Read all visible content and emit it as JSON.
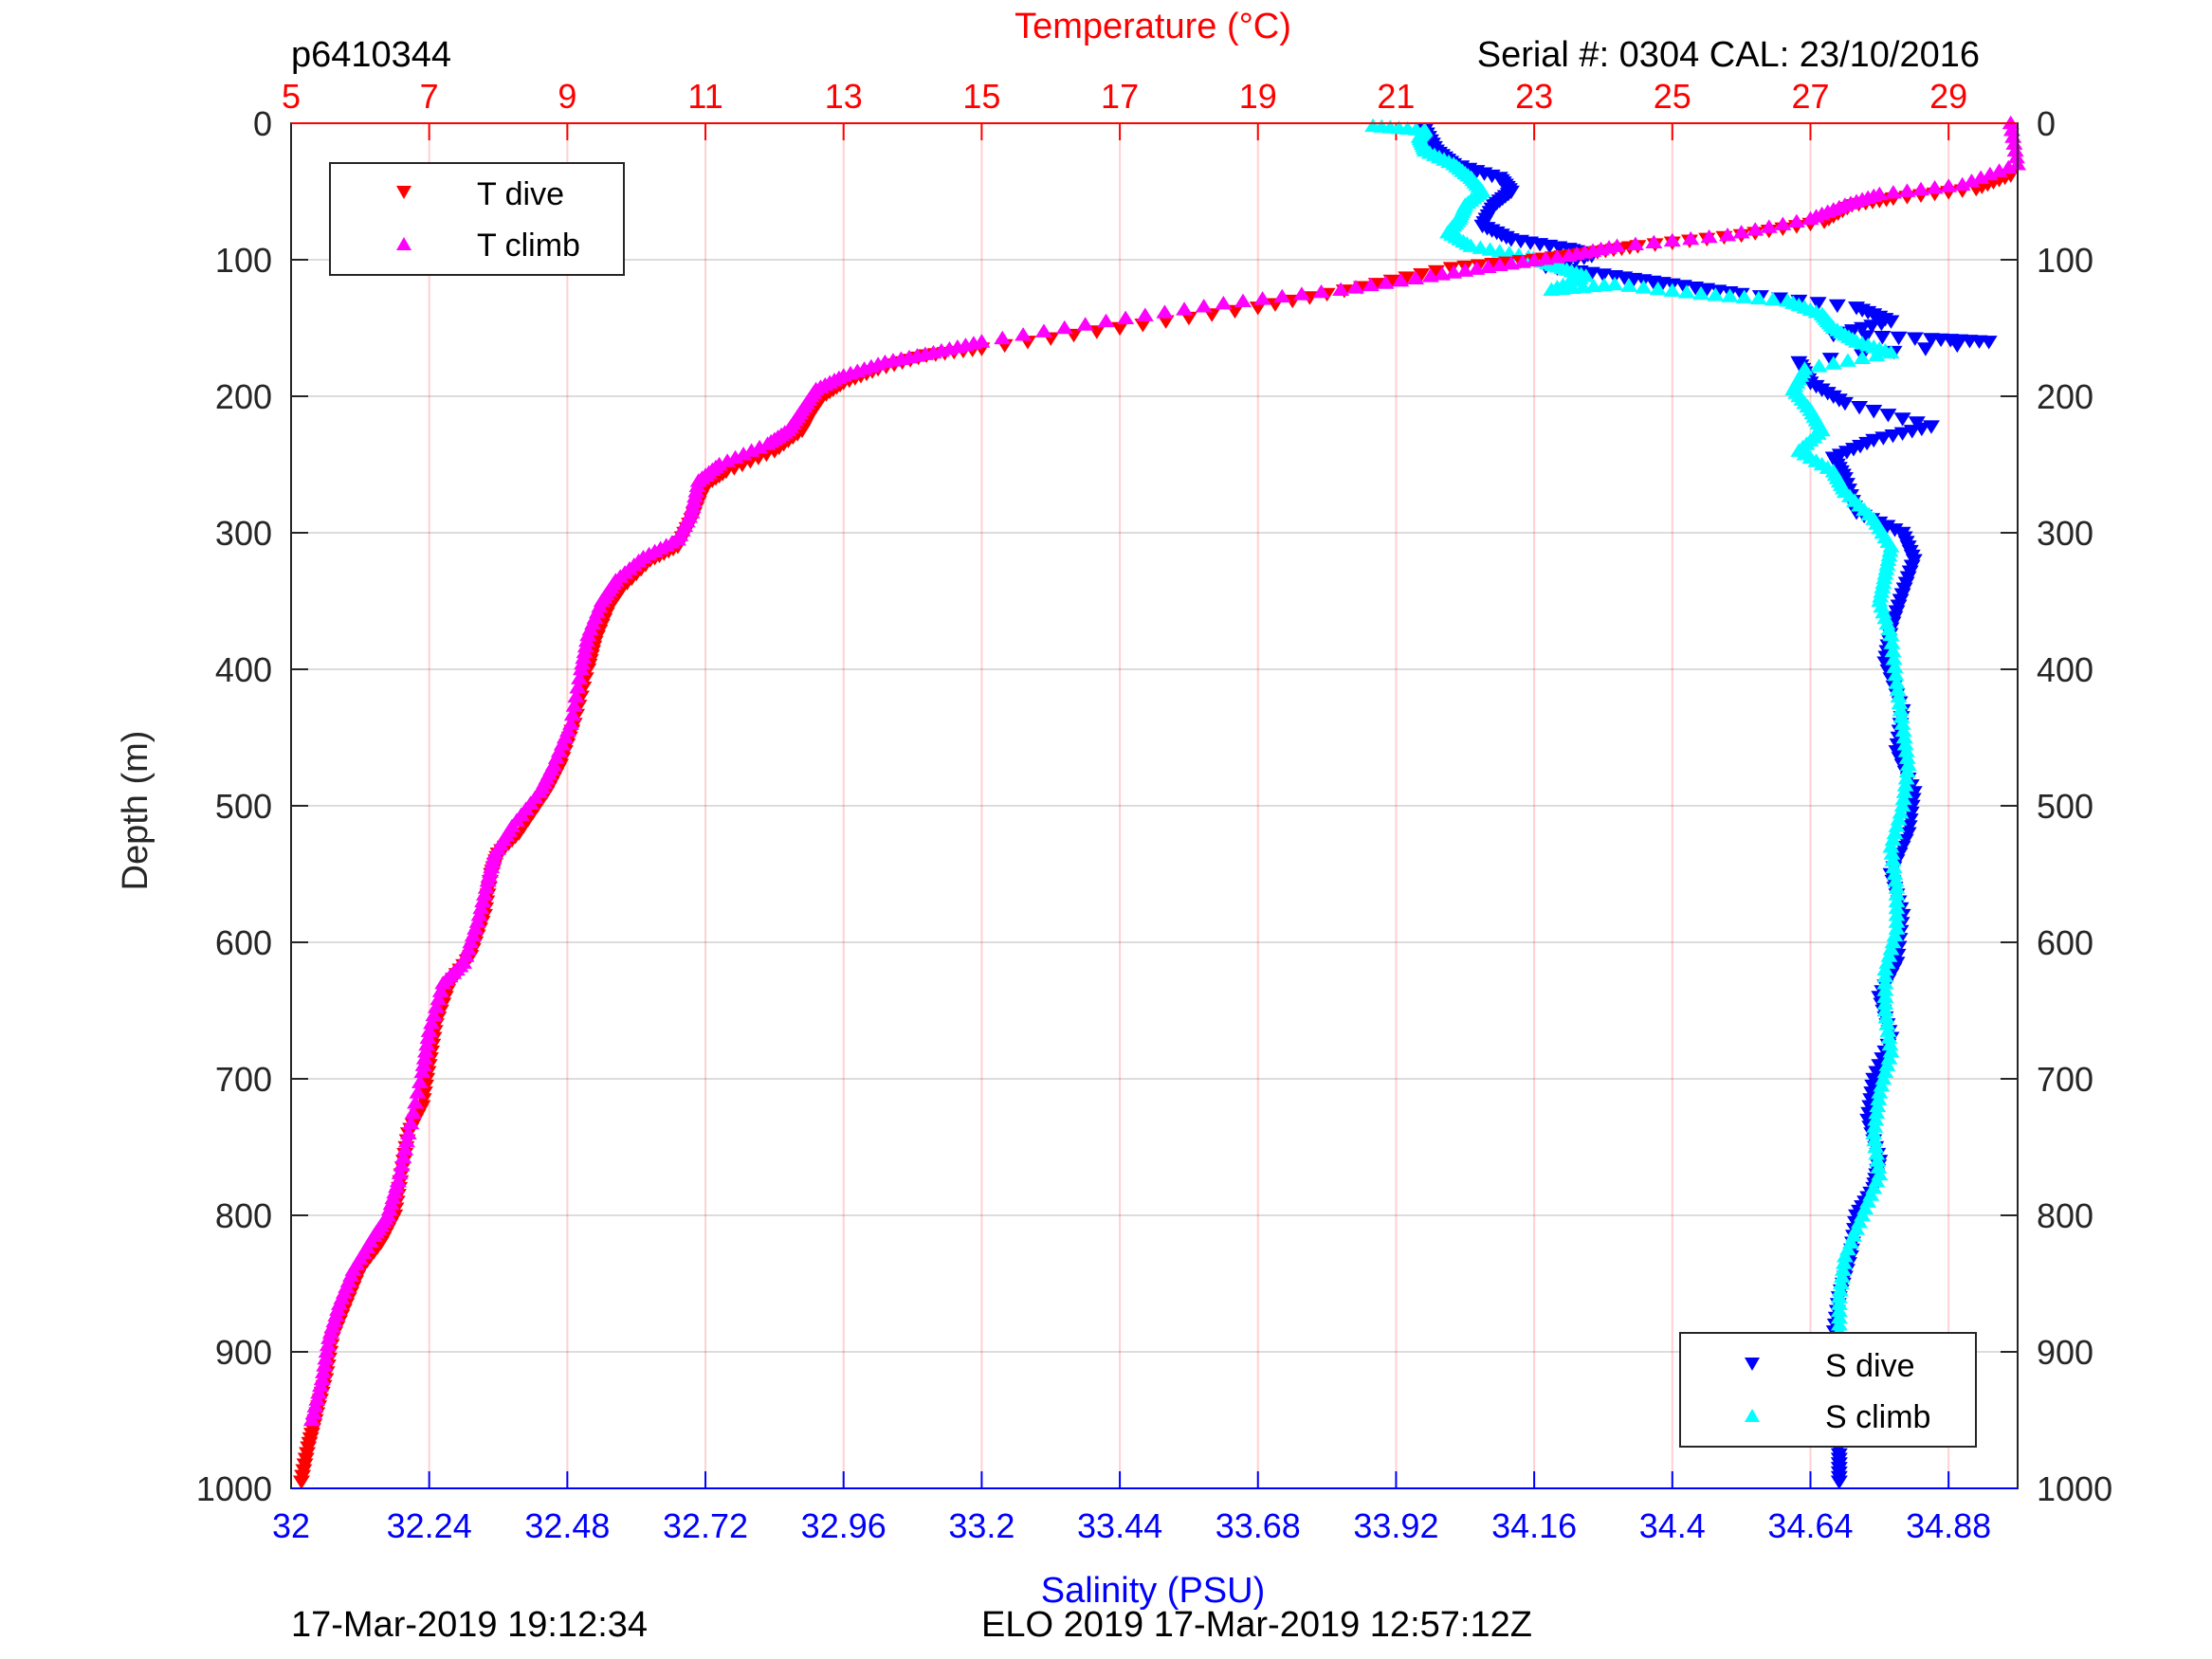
{
  "header": {
    "glider_id": "p6410344",
    "serial": "Serial #: 0304  CAL: 23/10/2016"
  },
  "footer": {
    "plot_time": "17-Mar-2019 19:12:34",
    "mission": "ELO 2019 17-Mar-2019 12:57:12Z"
  },
  "colors": {
    "temperature_axis": "#ff0000",
    "salinity_axis": "#0000ff",
    "t_dive": "#ff0000",
    "t_climb": "#ff00ff",
    "s_dive": "#0000ff",
    "s_climb": "#00ffff"
  },
  "chart_data": {
    "type": "scatter",
    "y_axis": {
      "label": "Depth (m)",
      "range": [
        0,
        1000
      ],
      "reversed": true,
      "ticks": [
        "0",
        "100",
        "200",
        "300",
        "400",
        "500",
        "600",
        "700",
        "800",
        "900",
        "1000"
      ]
    },
    "x_axis_top": {
      "label": "Temperature (°C)",
      "range": [
        5,
        30
      ],
      "ticks": [
        "5",
        "7",
        "9",
        "11",
        "13",
        "15",
        "17",
        "19",
        "21",
        "23",
        "25",
        "27",
        "29"
      ]
    },
    "x_axis_bottom": {
      "label": "Salinity (PSU)",
      "range": [
        32,
        35
      ],
      "ticks": [
        "32",
        "32.24",
        "32.48",
        "32.72",
        "32.96",
        "33.2",
        "33.44",
        "33.68",
        "33.92",
        "34.16",
        "34.4",
        "34.64",
        "34.88"
      ]
    },
    "grid": true,
    "legends": [
      {
        "placement": "top-left",
        "entries": [
          "T dive",
          "T climb"
        ]
      },
      {
        "placement": "bottom-right",
        "entries": [
          "S dive",
          "S climb"
        ]
      }
    ],
    "series": [
      {
        "name": "T dive",
        "axis": "temperature",
        "marker": "triangle-down",
        "points": [
          [
            29.9,
            38
          ],
          [
            29.4,
            48
          ],
          [
            28.2,
            55
          ],
          [
            27.6,
            60
          ],
          [
            27.2,
            72
          ],
          [
            26.0,
            82
          ],
          [
            24.5,
            90
          ],
          [
            23.8,
            95
          ],
          [
            23.0,
            100
          ],
          [
            21.8,
            106
          ],
          [
            20.5,
            120
          ],
          [
            19.0,
            135
          ],
          [
            17.0,
            150
          ],
          [
            15.0,
            165
          ],
          [
            14.2,
            170
          ],
          [
            13.5,
            180
          ],
          [
            13.0,
            190
          ],
          [
            12.7,
            200
          ],
          [
            12.5,
            215
          ],
          [
            12.4,
            225
          ],
          [
            12.0,
            240
          ],
          [
            11.3,
            255
          ],
          [
            11.0,
            265
          ],
          [
            10.8,
            290
          ],
          [
            10.6,
            310
          ],
          [
            10.2,
            320
          ],
          [
            9.8,
            340
          ],
          [
            9.6,
            355
          ],
          [
            9.4,
            380
          ],
          [
            9.3,
            400
          ],
          [
            9.1,
            440
          ],
          [
            8.9,
            470
          ],
          [
            8.7,
            490
          ],
          [
            8.3,
            520
          ],
          [
            8.0,
            535
          ],
          [
            7.9,
            550
          ],
          [
            7.8,
            580
          ],
          [
            7.6,
            610
          ],
          [
            7.3,
            630
          ],
          [
            7.1,
            660
          ],
          [
            7.0,
            690
          ],
          [
            6.9,
            720
          ],
          [
            6.7,
            740
          ],
          [
            6.6,
            770
          ],
          [
            6.5,
            800
          ],
          [
            6.3,
            820
          ],
          [
            6.0,
            840
          ],
          [
            5.8,
            865
          ],
          [
            5.6,
            890
          ],
          [
            5.5,
            920
          ],
          [
            5.35,
            950
          ],
          [
            5.25,
            970
          ],
          [
            5.15,
            995
          ]
        ]
      },
      {
        "name": "T climb",
        "axis": "temperature",
        "marker": "triangle-up",
        "points": [
          [
            29.9,
            0
          ],
          [
            30.0,
            30
          ],
          [
            29.2,
            45
          ],
          [
            28.0,
            52
          ],
          [
            27.5,
            60
          ],
          [
            27.0,
            70
          ],
          [
            25.8,
            82
          ],
          [
            24.2,
            90
          ],
          [
            23.5,
            97
          ],
          [
            22.5,
            104
          ],
          [
            21.5,
            112
          ],
          [
            20.2,
            122
          ],
          [
            18.5,
            132
          ],
          [
            16.8,
            145
          ],
          [
            15.0,
            160
          ],
          [
            14.3,
            168
          ],
          [
            13.6,
            175
          ],
          [
            13.0,
            185
          ],
          [
            12.6,
            195
          ],
          [
            12.4,
            210
          ],
          [
            12.2,
            225
          ],
          [
            11.9,
            235
          ],
          [
            11.2,
            250
          ],
          [
            10.9,
            262
          ],
          [
            10.8,
            285
          ],
          [
            10.6,
            305
          ],
          [
            10.1,
            318
          ],
          [
            9.7,
            335
          ],
          [
            9.5,
            350
          ],
          [
            9.3,
            375
          ],
          [
            9.2,
            400
          ],
          [
            9.05,
            440
          ],
          [
            8.8,
            470
          ],
          [
            8.6,
            490
          ],
          [
            8.2,
            515
          ],
          [
            7.95,
            535
          ],
          [
            7.85,
            555
          ],
          [
            7.7,
            585
          ],
          [
            7.5,
            615
          ],
          [
            7.2,
            630
          ],
          [
            7.0,
            665
          ],
          [
            6.9,
            695
          ],
          [
            6.7,
            740
          ],
          [
            6.55,
            775
          ],
          [
            6.4,
            800
          ],
          [
            6.2,
            815
          ],
          [
            5.9,
            840
          ],
          [
            5.7,
            865
          ],
          [
            5.55,
            890
          ],
          [
            5.45,
            920
          ],
          [
            5.3,
            950
          ]
        ]
      },
      {
        "name": "S dive",
        "axis": "salinity",
        "marker": "triangle-down",
        "points": [
          [
            33.97,
            5
          ],
          [
            33.99,
            20
          ],
          [
            34.02,
            30
          ],
          [
            34.1,
            40
          ],
          [
            34.12,
            50
          ],
          [
            34.09,
            60
          ],
          [
            34.07,
            75
          ],
          [
            34.12,
            85
          ],
          [
            34.22,
            92
          ],
          [
            34.26,
            97
          ],
          [
            34.18,
            105
          ],
          [
            34.3,
            112
          ],
          [
            34.4,
            118
          ],
          [
            34.52,
            125
          ],
          [
            34.72,
            135
          ],
          [
            34.78,
            145
          ],
          [
            34.68,
            155
          ],
          [
            34.85,
            158
          ],
          [
            34.95,
            160
          ],
          [
            34.62,
            175
          ],
          [
            34.64,
            190
          ],
          [
            34.7,
            205
          ],
          [
            34.85,
            222
          ],
          [
            34.75,
            232
          ],
          [
            34.68,
            245
          ],
          [
            34.7,
            260
          ],
          [
            34.72,
            285
          ],
          [
            34.8,
            300
          ],
          [
            34.82,
            320
          ],
          [
            34.8,
            345
          ],
          [
            34.78,
            370
          ],
          [
            34.77,
            395
          ],
          [
            34.8,
            430
          ],
          [
            34.79,
            460
          ],
          [
            34.82,
            490
          ],
          [
            34.81,
            520
          ],
          [
            34.78,
            550
          ],
          [
            34.8,
            580
          ],
          [
            34.79,
            615
          ],
          [
            34.76,
            640
          ],
          [
            34.78,
            670
          ],
          [
            34.75,
            700
          ],
          [
            34.74,
            730
          ],
          [
            34.76,
            760
          ],
          [
            34.75,
            780
          ],
          [
            34.72,
            800
          ],
          [
            34.71,
            830
          ],
          [
            34.69,
            860
          ],
          [
            34.68,
            890
          ],
          [
            34.68,
            920
          ],
          [
            34.68,
            950
          ],
          [
            34.69,
            975
          ],
          [
            34.69,
            995
          ]
        ]
      },
      {
        "name": "S climb",
        "axis": "salinity",
        "marker": "triangle-up",
        "points": [
          [
            33.88,
            2
          ],
          [
            33.97,
            5
          ],
          [
            33.96,
            10
          ],
          [
            33.97,
            20
          ],
          [
            34.02,
            30
          ],
          [
            34.05,
            40
          ],
          [
            34.07,
            50
          ],
          [
            34.04,
            60
          ],
          [
            34.03,
            70
          ],
          [
            34.01,
            80
          ],
          [
            34.05,
            90
          ],
          [
            34.15,
            98
          ],
          [
            34.2,
            105
          ],
          [
            34.25,
            112
          ],
          [
            34.19,
            122
          ],
          [
            34.3,
            118
          ],
          [
            34.45,
            125
          ],
          [
            34.6,
            130
          ],
          [
            34.66,
            140
          ],
          [
            34.68,
            150
          ],
          [
            34.72,
            160
          ],
          [
            34.78,
            168
          ],
          [
            34.63,
            180
          ],
          [
            34.61,
            195
          ],
          [
            34.64,
            210
          ],
          [
            34.66,
            225
          ],
          [
            34.62,
            240
          ],
          [
            34.68,
            255
          ],
          [
            34.7,
            270
          ],
          [
            34.75,
            290
          ],
          [
            34.78,
            310
          ],
          [
            34.77,
            330
          ],
          [
            34.76,
            350
          ],
          [
            34.78,
            375
          ],
          [
            34.79,
            410
          ],
          [
            34.8,
            440
          ],
          [
            34.81,
            470
          ],
          [
            34.8,
            500
          ],
          [
            34.78,
            530
          ],
          [
            34.79,
            560
          ],
          [
            34.79,
            590
          ],
          [
            34.77,
            620
          ],
          [
            34.77,
            650
          ],
          [
            34.78,
            680
          ],
          [
            34.76,
            710
          ],
          [
            34.75,
            740
          ],
          [
            34.76,
            770
          ],
          [
            34.73,
            800
          ],
          [
            34.7,
            830
          ],
          [
            34.69,
            860
          ],
          [
            34.69,
            890
          ],
          [
            34.69,
            920
          ],
          [
            34.68,
            950
          ]
        ]
      }
    ]
  }
}
